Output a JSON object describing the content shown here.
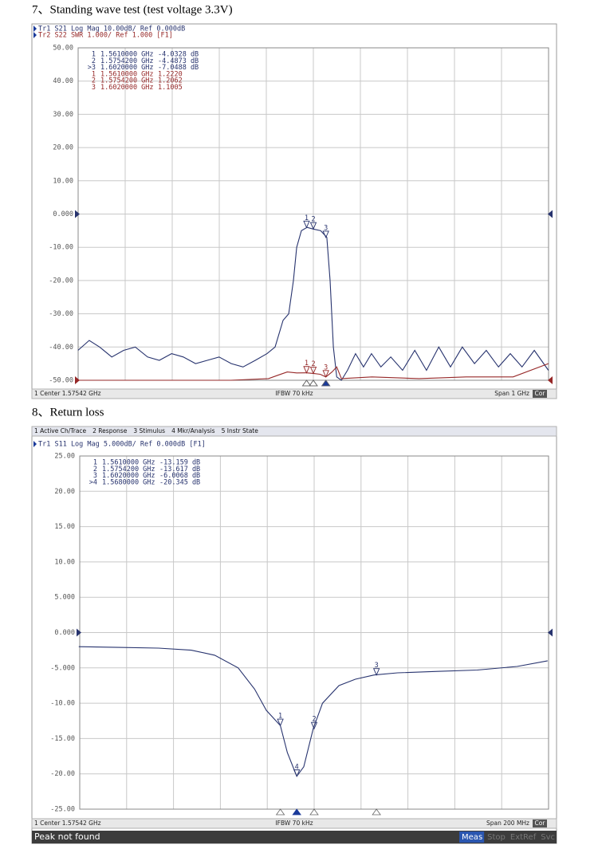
{
  "sections": [
    {
      "heading": "7、Standing wave test (test voltage 3.3V)",
      "chart": {
        "type": "line",
        "traces_header": [
          "Tr1 S21 Log Mag 10.00dB/ Ref 0.000dB",
          "Tr2 S22 SWR 1.000/ Ref 1.000 [F1]"
        ],
        "xlim": [
          1.07542,
          2.07542
        ],
        "ylim": [
          -50,
          50
        ],
        "yticks": [
          {
            "value": 50,
            "label": "50.00"
          },
          {
            "value": 40,
            "label": "40.00"
          },
          {
            "value": 30,
            "label": "30.00"
          },
          {
            "value": 20,
            "label": "20.00"
          },
          {
            "value": 10,
            "label": "10.00"
          },
          {
            "value": 0,
            "label": "0.000"
          },
          {
            "value": -10,
            "label": "-10.00"
          },
          {
            "value": -20,
            "label": "-20.00"
          },
          {
            "value": -30,
            "label": "-30.00"
          },
          {
            "value": -40,
            "label": "-40.00"
          },
          {
            "value": -50,
            "label": "-50.00"
          }
        ],
        "y2lim": [
          1.0,
          11.0
        ],
        "grid": true,
        "series": [
          {
            "color": "#27336e",
            "ref": 0,
            "x": [
              1.075,
              1.099,
              1.121,
              1.147,
              1.172,
              1.197,
              1.223,
              1.248,
              1.274,
              1.299,
              1.325,
              1.35,
              1.375,
              1.401,
              1.426,
              1.452,
              1.477,
              1.494,
              1.511,
              1.523,
              1.533,
              1.54,
              1.55,
              1.562,
              1.575,
              1.591,
              1.604,
              1.611,
              1.618,
              1.625,
              1.635,
              1.648,
              1.665,
              1.682,
              1.699,
              1.719,
              1.74,
              1.765,
              1.791,
              1.816,
              1.842,
              1.867,
              1.892,
              1.918,
              1.943,
              1.969,
              1.994,
              2.019,
              2.045,
              2.075
            ],
            "values": [
              -41,
              -38,
              -40,
              -43,
              -41,
              -40,
              -43,
              -44,
              -42,
              -43,
              -45,
              -44,
              -43,
              -45,
              -46,
              -44,
              -42,
              -40,
              -32,
              -30,
              -20,
              -10,
              -5,
              -4,
              -4.5,
              -5,
              -7,
              -20,
              -40,
              -49,
              -50,
              -47,
              -42,
              -46,
              -42,
              -46,
              -43,
              -47,
              -41,
              -47,
              -40,
              -46,
              -40,
              -45,
              -41,
              -46,
              -42,
              -46,
              -41,
              -47
            ],
            "markers": [
              {
                "label": "1",
                "table_label": "1",
                "x": 1.561,
                "x_label": "1.5610000 GHz",
                "value": -4.0328,
                "value_label": "-4.0328 dB"
              },
              {
                "label": "2",
                "table_label": "2",
                "x": 1.57542,
                "x_label": "1.5754200 GHz",
                "value": -4.4873,
                "value_label": "-4.4873 dB"
              },
              {
                "label": "3",
                "table_label": ">3",
                "x": 1.602,
                "x_label": "1.6020000 GHz",
                "value": -7.0488,
                "value_label": "-7.0488 dB"
              }
            ]
          },
          {
            "color": "#962828",
            "axis": "y2",
            "ref": 1.0,
            "x": [
              1.075,
              1.4,
              1.48,
              1.5,
              1.52,
              1.54,
              1.561,
              1.575,
              1.59,
              1.602,
              1.615,
              1.625,
              1.635,
              1.7,
              1.8,
              1.9,
              2.0,
              2.075
            ],
            "values": [
              1.0,
              1.0,
              1.05,
              1.15,
              1.25,
              1.22,
              1.222,
              1.206,
              1.18,
              1.1005,
              1.25,
              1.4,
              1.05,
              1.1,
              1.05,
              1.1,
              1.1,
              1.5
            ],
            "markers": [
              {
                "label": "1",
                "table_label": "1",
                "x": 1.561,
                "x_label": "1.5610000 GHz",
                "value": 1.222,
                "value_label": "1.2220"
              },
              {
                "label": "2",
                "table_label": "2",
                "x": 1.57542,
                "x_label": "1.5754200 GHz",
                "value": 1.2062,
                "value_label": "1.2062"
              },
              {
                "label": "3",
                "table_label": "3",
                "x": 1.602,
                "x_label": "1.6020000 GHz",
                "value": 1.1005,
                "value_label": "1.1005"
              }
            ]
          }
        ],
        "footer": {
          "left": "1 Center 1.57542 GHz",
          "center": "IFBW 70 kHz",
          "right": "Span 1 GHz",
          "badge": "Cor"
        }
      }
    },
    {
      "heading": "8、Return loss",
      "chart": {
        "type": "line",
        "menu": [
          "1 Active Ch/Trace",
          "2 Response",
          "3 Stimulus",
          "4 Mkr/Analysis",
          "5 Instr State"
        ],
        "traces_header": [
          "Tr1 S11 Log Mag 5.000dB/ Ref 0.000dB [F1]"
        ],
        "xlim": [
          1.47542,
          1.67542
        ],
        "ylim": [
          -25,
          25
        ],
        "yticks": [
          {
            "value": 25,
            "label": "25.00"
          },
          {
            "value": 20,
            "label": "20.00"
          },
          {
            "value": 15,
            "label": "15.00"
          },
          {
            "value": 10,
            "label": "10.00"
          },
          {
            "value": 5,
            "label": "5.000"
          },
          {
            "value": 0,
            "label": "0.000"
          },
          {
            "value": -5,
            "label": "-5.000"
          },
          {
            "value": -10,
            "label": "-10.00"
          },
          {
            "value": -15,
            "label": "-15.00"
          },
          {
            "value": -20,
            "label": "-20.00"
          },
          {
            "value": -25,
            "label": "-25.00"
          }
        ],
        "grid": true,
        "series": [
          {
            "color": "#27336e",
            "ref": 0,
            "x": [
              1.475,
              1.492,
              1.509,
              1.523,
              1.533,
              1.543,
              1.55,
              1.555,
              1.561,
              1.564,
              1.568,
              1.571,
              1.575,
              1.579,
              1.586,
              1.593,
              1.601,
              1.611,
              1.628,
              1.645,
              1.662,
              1.675
            ],
            "values": [
              -2.0,
              -2.1,
              -2.2,
              -2.5,
              -3.2,
              -5,
              -8,
              -11,
              -13.159,
              -17,
              -20.345,
              -19,
              -13.617,
              -10,
              -7.5,
              -6.6,
              -6.0,
              -5.7,
              -5.5,
              -5.3,
              -4.8,
              -4.0
            ],
            "markers": [
              {
                "label": "1",
                "table_label": "1",
                "x": 1.561,
                "x_label": "1.5610000 GHz",
                "value": -13.159,
                "value_label": "-13.159 dB"
              },
              {
                "label": "2",
                "table_label": "2",
                "x": 1.57542,
                "x_label": "1.5754200 GHz",
                "value": -13.617,
                "value_label": "-13.617 dB"
              },
              {
                "label": "3",
                "table_label": "3",
                "x": 1.602,
                "x_label": "1.6020000 GHz",
                "value": -6.0068,
                "value_label": "-6.0068 dB"
              },
              {
                "label": "4",
                "table_label": ">4",
                "x": 1.568,
                "x_label": "1.5680000 GHz",
                "value": -20.345,
                "value_label": "-20.345 dB"
              }
            ]
          }
        ],
        "footer": {
          "left": "1 Center 1.57542 GHz",
          "center": "IFBW 70 kHz",
          "right": "Span 200 MHz",
          "badge": "Cor"
        },
        "status": {
          "message": "Peak not found",
          "buttons": [
            "Meas",
            "Stop",
            "ExtRef",
            "Svc"
          ]
        }
      }
    }
  ]
}
